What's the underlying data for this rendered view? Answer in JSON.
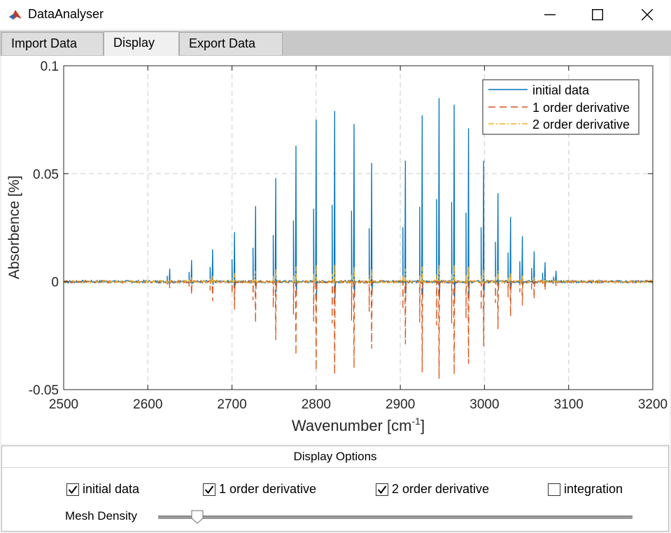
{
  "window": {
    "title": "DataAnalyser"
  },
  "tabs": [
    {
      "label": "Import Data"
    },
    {
      "label": "Display"
    },
    {
      "label": "Export Data"
    }
  ],
  "active_tab": "Display",
  "chart_data": {
    "type": "line",
    "title": "",
    "xlabel": "Wavenumber  [cm",
    "xlabel_sup": "-1",
    "xlabel_end": "]",
    "ylabel": "Absorbence [%]",
    "xlim": [
      2500,
      3200
    ],
    "ylim": [
      -0.05,
      0.1
    ],
    "xticks": [
      2500,
      2600,
      2700,
      2800,
      2900,
      3000,
      3100,
      3200
    ],
    "yticks": [
      {
        "value": -0.05,
        "label": "-0.05"
      },
      {
        "value": 0,
        "label": "0"
      },
      {
        "value": 0.05,
        "label": "0.05"
      },
      {
        "value": 0.1,
        "label": "0.1"
      }
    ],
    "grid": true,
    "legend_position": "top-right",
    "series": [
      {
        "name": "initial data",
        "color": "#0072bd",
        "style": "solid",
        "x": [
          2626,
          2652,
          2677,
          2703,
          2728,
          2752,
          2776,
          2800,
          2822,
          2845,
          2866,
          2906,
          2926,
          2946,
          2964,
          2981,
          2999,
          3016,
          3031,
          3045,
          3059,
          3072,
          3085
        ],
        "y": [
          0.006,
          0.01,
          0.015,
          0.023,
          0.035,
          0.048,
          0.063,
          0.075,
          0.079,
          0.073,
          0.055,
          0.056,
          0.077,
          0.085,
          0.082,
          0.071,
          0.056,
          0.041,
          0.03,
          0.021,
          0.014,
          0.009,
          0.005
        ]
      },
      {
        "name": "1 order derivative",
        "color": "#d95319",
        "style": "dashed",
        "x": [
          2626,
          2652,
          2677,
          2703,
          2728,
          2752,
          2776,
          2800,
          2822,
          2845,
          2866,
          2906,
          2926,
          2946,
          2964,
          2981,
          2999,
          3016,
          3031,
          3045,
          3059,
          3072,
          3085
        ],
        "y": [
          -0.003,
          -0.006,
          -0.009,
          -0.013,
          -0.019,
          -0.027,
          -0.034,
          -0.041,
          -0.043,
          -0.04,
          -0.031,
          -0.029,
          -0.042,
          -0.045,
          -0.043,
          -0.038,
          -0.03,
          -0.022,
          -0.016,
          -0.011,
          -0.008,
          -0.004,
          -0.002
        ]
      },
      {
        "name": "2 order derivative",
        "color": "#edb120",
        "style": "dashdot",
        "x": [
          2626,
          2652,
          2677,
          2703,
          2728,
          2752,
          2776,
          2800,
          2822,
          2845,
          2866,
          2906,
          2926,
          2946,
          2964,
          2981,
          2999,
          3016,
          3031,
          3045,
          3059,
          3072,
          3085
        ],
        "y": [
          0.001,
          0.002,
          0.003,
          0.004,
          0.005,
          0.006,
          0.007,
          0.008,
          0.008,
          0.007,
          0.006,
          0.006,
          0.007,
          0.008,
          0.008,
          0.007,
          0.006,
          0.005,
          0.004,
          0.003,
          0.002,
          0.002,
          0.001
        ]
      }
    ]
  },
  "display_options": {
    "title": "Display Options",
    "checkboxes": [
      {
        "label": "initial data",
        "checked": true
      },
      {
        "label": "1 order derivative",
        "checked": true
      },
      {
        "label": "2 order derivative",
        "checked": true
      },
      {
        "label": "integration",
        "checked": false
      }
    ],
    "mesh_density_label": "Mesh Density",
    "mesh_density_value": 0.08
  }
}
